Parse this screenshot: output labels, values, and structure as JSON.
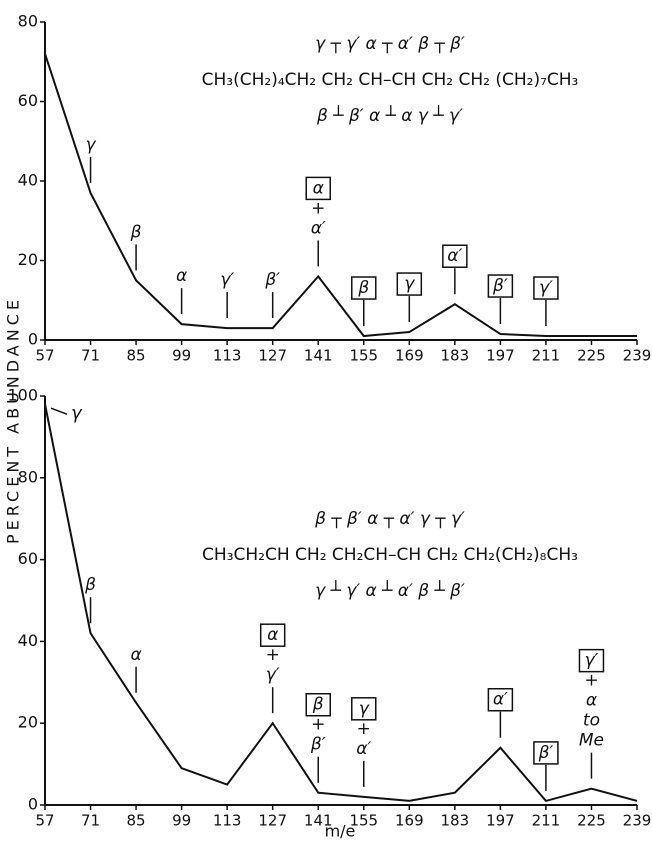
{
  "y_label": "PERCENT ABUNDANCE",
  "x_label": "m/e",
  "chart_data": [
    {
      "type": "line",
      "x": [
        57,
        71,
        85,
        99,
        113,
        127,
        141,
        155,
        169,
        183,
        197,
        211,
        225,
        239
      ],
      "values": [
        72,
        37,
        15,
        4,
        3,
        3,
        16,
        1,
        2,
        9,
        1.5,
        1,
        1,
        1
      ],
      "xlim": [
        57,
        239
      ],
      "xticks": [
        57,
        71,
        85,
        99,
        113,
        127,
        141,
        155,
        169,
        183,
        197,
        211,
        225,
        239
      ],
      "ylim": [
        0,
        80
      ],
      "yticks": [
        0,
        20,
        40,
        60,
        80
      ],
      "formula": "CH₃(CH₂)₄CH₂ CH₂ CH–CH CH₂ CH₂ (CH₂)₇CH₃",
      "formula_top": "γ ┬ γ′   α ┬ α′   β ┬ β′",
      "formula_bottom": "β ┴ β′    α ┴ α   γ ┴ γ′",
      "annotations": [
        {
          "x": 71,
          "lines": [
            "γ"
          ],
          "boxed": false
        },
        {
          "x": 85,
          "lines": [
            "β"
          ],
          "boxed": false
        },
        {
          "x": 99,
          "lines": [
            "α"
          ],
          "boxed": false
        },
        {
          "x": 113,
          "lines": [
            "γ′"
          ],
          "boxed": false
        },
        {
          "x": 127,
          "lines": [
            "β′"
          ],
          "boxed": false
        },
        {
          "x": 141,
          "lines": [
            "α",
            "+",
            "α′"
          ],
          "boxed": true
        },
        {
          "x": 155,
          "lines": [
            "β"
          ],
          "boxed": true
        },
        {
          "x": 169,
          "lines": [
            "γ"
          ],
          "boxed": true
        },
        {
          "x": 183,
          "lines": [
            "α′"
          ],
          "boxed": true
        },
        {
          "x": 197,
          "lines": [
            "β′"
          ],
          "boxed": true
        },
        {
          "x": 211,
          "lines": [
            "γ′"
          ],
          "boxed": true
        }
      ]
    },
    {
      "type": "line",
      "x": [
        57,
        71,
        85,
        99,
        113,
        127,
        141,
        155,
        169,
        183,
        197,
        211,
        225,
        239
      ],
      "values": [
        98,
        42,
        25,
        9,
        5,
        20,
        3,
        2,
        1,
        3,
        14,
        1,
        4,
        1
      ],
      "xlim": [
        57,
        239
      ],
      "xticks": [
        57,
        71,
        85,
        99,
        113,
        127,
        141,
        155,
        169,
        183,
        197,
        211,
        225,
        239
      ],
      "ylim": [
        0,
        100
      ],
      "yticks": [
        0,
        20,
        40,
        60,
        80,
        100
      ],
      "formula": "CH₃CH₂CH CH₂ CH₂CH–CH CH₂ CH₂(CH₂)₈CH₃",
      "formula_top": "β ┬ β′   α ┬ α′   γ ┬ γ′",
      "formula_bottom": "γ ┴ γ′   α ┴ α′   β ┴ β′",
      "annotations": [
        {
          "x": 57,
          "lines": [
            "γ"
          ],
          "boxed": false
        },
        {
          "x": 71,
          "lines": [
            "β"
          ],
          "boxed": false
        },
        {
          "x": 85,
          "lines": [
            "α"
          ],
          "boxed": false
        },
        {
          "x": 127,
          "lines": [
            "α",
            "+",
            "γ′"
          ],
          "boxed": true
        },
        {
          "x": 141,
          "lines": [
            "β",
            "+",
            "β′"
          ],
          "boxed": true
        },
        {
          "x": 155,
          "lines": [
            "γ",
            "+",
            "α′"
          ],
          "boxed": true
        },
        {
          "x": 197,
          "lines": [
            "α′"
          ],
          "boxed": true
        },
        {
          "x": 211,
          "lines": [
            "β′"
          ],
          "boxed": true
        },
        {
          "x": 225,
          "lines": [
            "γ′",
            "+",
            "α",
            "to",
            "Me"
          ],
          "boxed": true
        }
      ]
    }
  ]
}
